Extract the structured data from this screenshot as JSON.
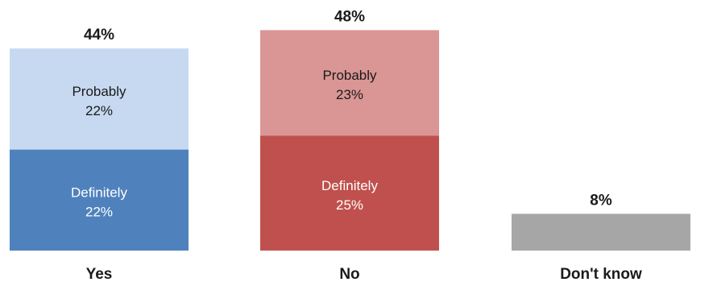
{
  "chart_data": {
    "type": "bar",
    "stacked": true,
    "categories": [
      "Yes",
      "No",
      "Don't know"
    ],
    "ylim": [
      0,
      50
    ],
    "bars": [
      {
        "category": "Yes",
        "total_label": "44%",
        "segments": [
          {
            "name": "Definitely",
            "value": 22,
            "value_label": "22%",
            "color": "#4f81bd",
            "text_color": "#ffffff"
          },
          {
            "name": "Probably",
            "value": 22,
            "value_label": "22%",
            "color": "#c6d9f0",
            "text_color": "#1a1a1a"
          }
        ]
      },
      {
        "category": "No",
        "total_label": "48%",
        "segments": [
          {
            "name": "Definitely",
            "value": 25,
            "value_label": "25%",
            "color": "#c0504d",
            "text_color": "#ffffff"
          },
          {
            "name": "Probably",
            "value": 23,
            "value_label": "23%",
            "color": "#da9694",
            "text_color": "#1a1a1a"
          }
        ]
      },
      {
        "category": "Don't know",
        "total_label": "8%",
        "segments": [
          {
            "name": "",
            "value": 8,
            "value_label": "",
            "color": "#a6a6a6",
            "text_color": "#1a1a1a"
          }
        ]
      }
    ]
  }
}
